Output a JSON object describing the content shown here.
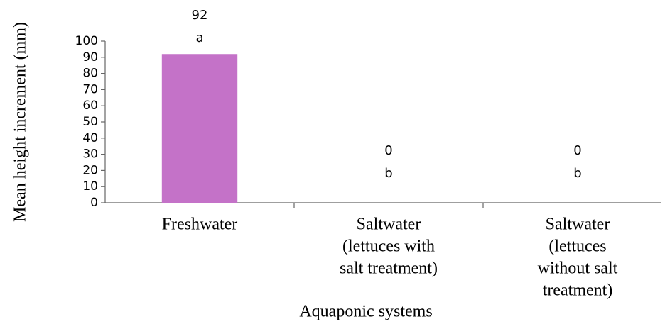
{
  "chart_data": {
    "type": "bar",
    "categories": [
      [
        "Freshwater"
      ],
      [
        "Saltwater",
        "(lettuces with",
        "salt treatment)"
      ],
      [
        "Saltwater",
        "(lettuces",
        "without salt",
        "treatment)"
      ]
    ],
    "values": [
      92,
      0,
      0
    ],
    "annotations": [
      "a",
      "b",
      "b"
    ],
    "color": "#c472c8",
    "xlabel": "Aquaponic systems",
    "ylabel": "Mean height increment (mm)",
    "ylim": [
      0,
      100
    ],
    "yticks": [
      0,
      10,
      20,
      30,
      40,
      50,
      60,
      70,
      80,
      90,
      100
    ]
  }
}
